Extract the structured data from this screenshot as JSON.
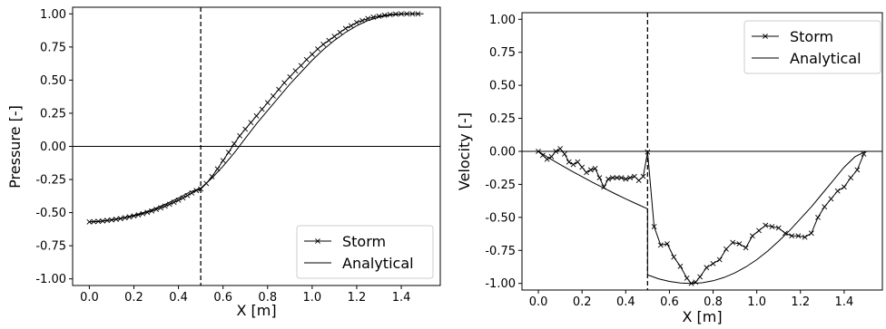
{
  "chart_data": [
    {
      "type": "line",
      "title": "",
      "xlabel": "X [m]",
      "ylabel": "Pressure [-]",
      "xlim": [
        -0.075,
        1.575
      ],
      "ylim": [
        -1.05,
        1.05
      ],
      "xticks": [
        "0.0",
        "0.2",
        "0.4",
        "0.6",
        "0.8",
        "1.0",
        "1.2",
        "1.4"
      ],
      "xtick_values": [
        0,
        0.2,
        0.4,
        0.6,
        0.8,
        1.0,
        1.2,
        1.4
      ],
      "yticks": [
        "1.00",
        "0.75",
        "0.50",
        "0.25",
        "0.00",
        "-0.25",
        "-0.50",
        "-0.75",
        "-1.00"
      ],
      "ytick_values": [
        1.0,
        0.75,
        0.5,
        0.25,
        0.0,
        -0.25,
        -0.5,
        -0.75,
        -1.0
      ],
      "vline_x": 0.5,
      "hline_y": 0.0,
      "legend_position": "lower-right",
      "series": [
        {
          "name": "Storm",
          "marker": "x",
          "x": [
            0.0,
            0.02,
            0.04,
            0.06,
            0.08,
            0.1,
            0.12,
            0.14,
            0.16,
            0.18,
            0.2,
            0.22,
            0.24,
            0.26,
            0.28,
            0.3,
            0.32,
            0.34,
            0.36,
            0.38,
            0.4,
            0.42,
            0.44,
            0.46,
            0.48,
            0.5,
            0.525,
            0.55,
            0.575,
            0.6,
            0.625,
            0.65,
            0.675,
            0.7,
            0.725,
            0.75,
            0.775,
            0.8,
            0.825,
            0.85,
            0.875,
            0.9,
            0.925,
            0.95,
            0.975,
            1.0,
            1.025,
            1.05,
            1.075,
            1.1,
            1.125,
            1.15,
            1.175,
            1.2,
            1.225,
            1.25,
            1.275,
            1.3,
            1.325,
            1.35,
            1.375,
            1.4,
            1.425,
            1.45,
            1.475
          ],
          "values": [
            -0.57,
            -0.568,
            -0.566,
            -0.563,
            -0.559,
            -0.555,
            -0.55,
            -0.545,
            -0.539,
            -0.532,
            -0.525,
            -0.517,
            -0.508,
            -0.498,
            -0.488,
            -0.476,
            -0.464,
            -0.451,
            -0.437,
            -0.422,
            -0.406,
            -0.389,
            -0.371,
            -0.352,
            -0.333,
            -0.322,
            -0.28,
            -0.228,
            -0.17,
            -0.107,
            -0.045,
            0.02,
            0.08,
            0.13,
            0.18,
            0.23,
            0.28,
            0.33,
            0.38,
            0.43,
            0.48,
            0.525,
            0.57,
            0.61,
            0.655,
            0.695,
            0.735,
            0.77,
            0.8,
            0.83,
            0.86,
            0.89,
            0.91,
            0.935,
            0.95,
            0.965,
            0.975,
            0.983,
            0.99,
            0.995,
            0.998,
            1.0,
            1.0,
            1.0,
            1.0
          ]
        },
        {
          "name": "Analytical",
          "marker": "none",
          "x": [
            0.0,
            0.05,
            0.1,
            0.15,
            0.2,
            0.25,
            0.3,
            0.35,
            0.4,
            0.45,
            0.5,
            0.55,
            0.6,
            0.65,
            0.7,
            0.75,
            0.8,
            0.85,
            0.9,
            0.95,
            1.0,
            1.05,
            1.1,
            1.15,
            1.2,
            1.25,
            1.3,
            1.35,
            1.4,
            1.45,
            1.5
          ],
          "values": [
            -0.57,
            -0.566,
            -0.555,
            -0.54,
            -0.52,
            -0.496,
            -0.465,
            -0.43,
            -0.39,
            -0.345,
            -0.315,
            -0.24,
            -0.15,
            -0.05,
            0.06,
            0.17,
            0.27,
            0.37,
            0.47,
            0.56,
            0.65,
            0.73,
            0.8,
            0.86,
            0.91,
            0.95,
            0.975,
            0.99,
            0.998,
            1.0,
            1.0
          ]
        }
      ]
    },
    {
      "type": "line",
      "title": "",
      "xlabel": "X [m]",
      "ylabel": "Velocity [-]",
      "xlim": [
        -0.075,
        1.575
      ],
      "ylim": [
        -1.05,
        1.05
      ],
      "xticks": [
        "0.0",
        "0.2",
        "0.4",
        "0.6",
        "0.8",
        "1.0",
        "1.2",
        "1.4"
      ],
      "xtick_values": [
        0,
        0.2,
        0.4,
        0.6,
        0.8,
        1.0,
        1.2,
        1.4
      ],
      "yticks": [
        "1.00",
        "0.75",
        "0.50",
        "0.25",
        "0.00",
        "-0.25",
        "-0.50",
        "-0.75",
        "-1.00"
      ],
      "ytick_values": [
        1.0,
        0.75,
        0.5,
        0.25,
        0.0,
        -0.25,
        -0.5,
        -0.75,
        -1.0
      ],
      "vline_x": 0.5,
      "hline_y": 0.0,
      "legend_position": "upper-right",
      "series": [
        {
          "name": "Storm",
          "marker": "x",
          "x": [
            0.0,
            0.02,
            0.04,
            0.06,
            0.08,
            0.1,
            0.12,
            0.14,
            0.16,
            0.18,
            0.2,
            0.22,
            0.24,
            0.26,
            0.28,
            0.3,
            0.32,
            0.34,
            0.36,
            0.38,
            0.4,
            0.42,
            0.44,
            0.46,
            0.48,
            0.5,
            0.53,
            0.56,
            0.59,
            0.62,
            0.65,
            0.68,
            0.7,
            0.72,
            0.74,
            0.77,
            0.8,
            0.83,
            0.86,
            0.89,
            0.92,
            0.95,
            0.98,
            1.01,
            1.04,
            1.07,
            1.1,
            1.13,
            1.16,
            1.19,
            1.22,
            1.25,
            1.28,
            1.31,
            1.34,
            1.37,
            1.4,
            1.43,
            1.46,
            1.49
          ],
          "values": [
            0.0,
            -0.03,
            -0.06,
            -0.04,
            0.0,
            0.02,
            -0.02,
            -0.08,
            -0.1,
            -0.08,
            -0.12,
            -0.16,
            -0.14,
            -0.13,
            -0.2,
            -0.27,
            -0.21,
            -0.2,
            -0.2,
            -0.2,
            -0.21,
            -0.2,
            -0.19,
            -0.22,
            -0.19,
            -0.005,
            -0.57,
            -0.71,
            -0.7,
            -0.8,
            -0.87,
            -0.96,
            -1.0,
            -0.99,
            -0.95,
            -0.88,
            -0.85,
            -0.82,
            -0.74,
            -0.69,
            -0.7,
            -0.73,
            -0.64,
            -0.6,
            -0.56,
            -0.57,
            -0.58,
            -0.62,
            -0.64,
            -0.64,
            -0.65,
            -0.62,
            -0.5,
            -0.42,
            -0.36,
            -0.3,
            -0.27,
            -0.2,
            -0.14,
            -0.02
          ]
        },
        {
          "name": "Analytical",
          "marker": "none",
          "x": [
            0.0,
            0.05,
            0.1,
            0.15,
            0.2,
            0.25,
            0.3,
            0.35,
            0.4,
            0.45,
            0.5,
            0.5,
            0.55,
            0.6,
            0.65,
            0.7,
            0.75,
            0.8,
            0.85,
            0.9,
            0.95,
            1.0,
            1.05,
            1.1,
            1.15,
            1.2,
            1.25,
            1.3,
            1.35,
            1.4,
            1.45,
            1.5
          ],
          "values": [
            0.0,
            -0.052,
            -0.1,
            -0.147,
            -0.192,
            -0.236,
            -0.278,
            -0.32,
            -0.36,
            -0.398,
            -0.435,
            -0.935,
            -0.965,
            -0.985,
            -0.997,
            -1.0,
            -0.995,
            -0.98,
            -0.955,
            -0.92,
            -0.875,
            -0.82,
            -0.755,
            -0.68,
            -0.6,
            -0.51,
            -0.42,
            -0.32,
            -0.22,
            -0.12,
            -0.04,
            0.0
          ]
        }
      ]
    }
  ]
}
